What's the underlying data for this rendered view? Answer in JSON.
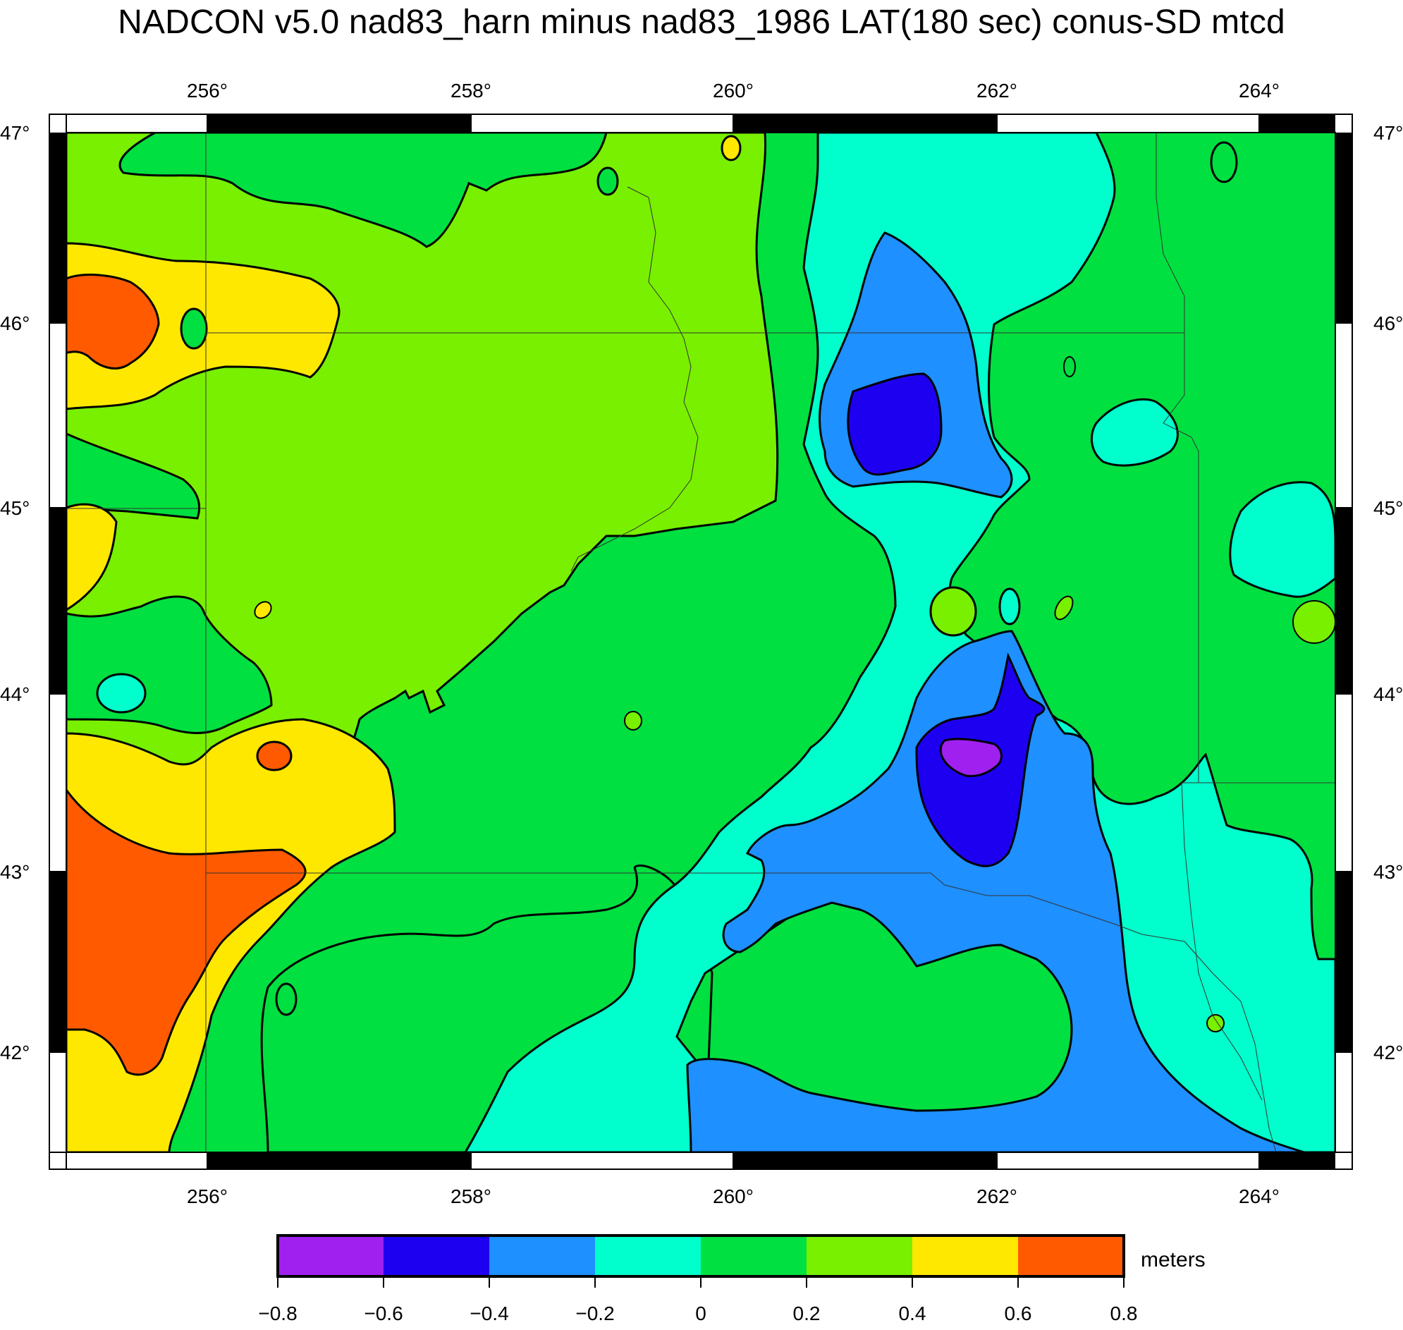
{
  "title": "NADCON v5.0 nad83_harn minus nad83_1986 LAT(180 sec) conus-SD mtcd",
  "map": {
    "lon_range": [
      254.8,
      264.6
    ],
    "lat_range": [
      41.45,
      47.05
    ],
    "lon_ticks": [
      "256°",
      "258°",
      "260°",
      "262°",
      "264°"
    ],
    "lat_ticks": [
      "47°",
      "46°",
      "45°",
      "44°",
      "43°",
      "42°"
    ]
  },
  "colorbar": {
    "units": "meters",
    "tick_labels": [
      "−0.8",
      "−0.6",
      "−0.4",
      "−0.2",
      "0",
      "0.2",
      "0.4",
      "0.6",
      "0.8"
    ],
    "bins": [
      {
        "range": [
          -0.8,
          -0.6
        ],
        "color": "#a020f0"
      },
      {
        "range": [
          -0.6,
          -0.4
        ],
        "color": "#1e00f0"
      },
      {
        "range": [
          -0.4,
          -0.2
        ],
        "color": "#1e90ff"
      },
      {
        "range": [
          -0.2,
          0.0
        ],
        "color": "#00ffcc"
      },
      {
        "range": [
          0.0,
          0.2
        ],
        "color": "#00e040"
      },
      {
        "range": [
          0.2,
          0.4
        ],
        "color": "#78f000"
      },
      {
        "range": [
          0.4,
          0.6
        ],
        "color": "#ffe800"
      },
      {
        "range": [
          0.6,
          0.8
        ],
        "color": "#ff5a00"
      }
    ]
  },
  "colors": {
    "purple": "#a020f0",
    "blue": "#1e00f0",
    "light_blue": "#1e90ff",
    "cyan": "#00ffcc",
    "green": "#00e040",
    "yellow_green": "#78f000",
    "yellow": "#ffe800",
    "orange": "#ff5a00"
  }
}
